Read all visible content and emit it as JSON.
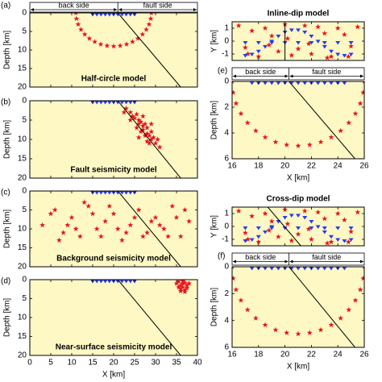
{
  "chart_data": [
    {
      "type": "scatter",
      "label": "(a)",
      "title": "Half-circle model",
      "ylabel": "Depth [km]",
      "annotations": [
        "back side",
        "fault side"
      ],
      "xlim": [
        0,
        40
      ],
      "xticks": [
        0,
        5,
        10,
        15,
        20,
        25,
        30,
        35,
        40
      ],
      "xtick_labels": false,
      "ylim": [
        20,
        0
      ],
      "yticks": [
        0,
        5,
        10,
        15,
        20
      ],
      "series": [
        {
          "marker": "star",
          "color": "#e8141c",
          "x": [
            29,
            28.86,
            28.46,
            27.79,
            26.89,
            25.79,
            24.5,
            23.08,
            21.56,
            20,
            18.44,
            16.92,
            15.5,
            14.21,
            13.11,
            12.21,
            11.54,
            11.14,
            11
          ],
          "y": [
            0,
            1.56,
            3.08,
            4.5,
            5.79,
            6.89,
            7.79,
            8.46,
            8.86,
            9,
            8.86,
            8.46,
            7.79,
            6.89,
            5.79,
            4.5,
            3.08,
            1.56,
            0
          ]
        },
        {
          "marker": "triangle",
          "color": "#2a3cf0",
          "x": [
            15,
            16,
            17,
            18,
            19,
            20,
            21,
            22,
            23,
            24,
            25
          ],
          "y": [
            0,
            0,
            0,
            0,
            0,
            0,
            0,
            0,
            0,
            0,
            0
          ]
        },
        {
          "marker": "line",
          "color": "#000000",
          "x": [
            21,
            36
          ],
          "y": [
            0,
            20
          ]
        }
      ]
    },
    {
      "type": "scatter",
      "label": "(b)",
      "title": "Fault seismicity model",
      "ylabel": "Depth [km]",
      "xlim": [
        0,
        40
      ],
      "xticks": [
        0,
        5,
        10,
        15,
        20,
        25,
        30,
        35,
        40
      ],
      "xtick_labels": false,
      "ylim": [
        20,
        0
      ],
      "yticks": [
        0,
        5,
        10,
        15,
        20
      ],
      "series": [
        {
          "marker": "star",
          "color": "#e8141c",
          "x": [
            23,
            24,
            24.5,
            25,
            25.5,
            26,
            26,
            26.5,
            27,
            27,
            27.5,
            28,
            28,
            28.5,
            29,
            29,
            29.5,
            30,
            24,
            25.5,
            26.5,
            27.5,
            28.5,
            30.5,
            31,
            22.5,
            27,
            29,
            26,
            28
          ],
          "y": [
            2,
            3,
            4,
            4.5,
            3.5,
            5,
            6,
            5.5,
            6.5,
            7.5,
            6,
            7,
            8.5,
            9,
            8,
            10,
            9.5,
            11,
            5,
            7,
            8,
            9,
            11,
            10,
            12,
            3,
            4,
            6,
            9.5,
            10.5
          ]
        },
        {
          "marker": "triangle",
          "color": "#2a3cf0",
          "x": [
            15,
            16,
            17,
            18,
            19,
            20,
            21,
            22,
            23,
            24,
            25
          ],
          "y": [
            0,
            0,
            0,
            0,
            0,
            0,
            0,
            0,
            0,
            0,
            0
          ]
        },
        {
          "marker": "line",
          "color": "#000000",
          "x": [
            21,
            36
          ],
          "y": [
            0,
            20
          ]
        }
      ]
    },
    {
      "type": "scatter",
      "label": "(c)",
      "title": "Background seismicity model",
      "ylabel": "Depth [km]",
      "xlim": [
        0,
        40
      ],
      "xticks": [
        0,
        5,
        10,
        15,
        20,
        25,
        30,
        35,
        40
      ],
      "xtick_labels": false,
      "ylim": [
        20,
        0
      ],
      "yticks": [
        0,
        5,
        10,
        15,
        20
      ],
      "series": [
        {
          "marker": "star",
          "color": "#e8141c",
          "x": [
            3,
            6,
            8,
            10,
            12,
            14,
            16,
            18,
            20,
            22,
            24,
            26,
            28,
            30,
            32,
            34,
            36,
            38,
            5,
            9,
            13,
            17,
            21,
            25,
            29,
            33,
            37,
            7,
            15,
            23,
            31,
            35,
            11,
            19,
            27
          ],
          "y": [
            9,
            5,
            11,
            7,
            12,
            4,
            10,
            8,
            6,
            13,
            9,
            5,
            11,
            7,
            10,
            4,
            12,
            8,
            6,
            9,
            3,
            12,
            10,
            7,
            8,
            12,
            5,
            13,
            6,
            11,
            9,
            7,
            10,
            4,
            12
          ]
        },
        {
          "marker": "triangle",
          "color": "#2a3cf0",
          "x": [
            15,
            16,
            17,
            18,
            19,
            20,
            21,
            22,
            23,
            24,
            25
          ],
          "y": [
            0,
            0,
            0,
            0,
            0,
            0,
            0,
            0,
            0,
            0,
            0
          ]
        },
        {
          "marker": "line",
          "color": "#000000",
          "x": [
            21,
            36
          ],
          "y": [
            0,
            20
          ]
        }
      ]
    },
    {
      "type": "scatter",
      "label": "(d)",
      "title": "Near-surface seismicity model",
      "ylabel": "Depth [km]",
      "xlabel": "X [km]",
      "xlim": [
        0,
        40
      ],
      "xticks": [
        0,
        5,
        10,
        15,
        20,
        25,
        30,
        35,
        40
      ],
      "xtick_labels": true,
      "ylim": [
        20,
        0
      ],
      "yticks": [
        0,
        5,
        10,
        15,
        20
      ],
      "series": [
        {
          "marker": "star",
          "color": "#e8141c",
          "x": [
            35,
            35.5,
            36,
            36.5,
            37,
            37.5,
            38,
            35.5,
            36,
            36.5,
            37,
            37.5,
            36,
            37,
            36.5
          ],
          "y": [
            1,
            0.5,
            1.5,
            1,
            0.8,
            1.5,
            1,
            2,
            2.5,
            2,
            2.8,
            2.2,
            3,
            3.2,
            0.3
          ]
        },
        {
          "marker": "triangle",
          "color": "#2a3cf0",
          "x": [
            15,
            16,
            17,
            18,
            19,
            20,
            21,
            22,
            23,
            24,
            25
          ],
          "y": [
            0,
            0,
            0,
            0,
            0,
            0,
            0,
            0,
            0,
            0,
            0
          ]
        },
        {
          "marker": "line",
          "color": "#000000",
          "x": [
            21,
            36
          ],
          "y": [
            0,
            20
          ]
        }
      ]
    },
    {
      "type": "scatter",
      "title": "Inline-dip model",
      "ylabel": "Y [km]",
      "xlim": [
        16,
        26
      ],
      "xticks": [
        16,
        18,
        20,
        22,
        24,
        26
      ],
      "xtick_labels": false,
      "ylim": [
        -1.5,
        1.5
      ],
      "yticks": [
        -1,
        0,
        1
      ],
      "series": [
        {
          "marker": "star",
          "color": "#e8141c",
          "x": [
            16.5,
            17,
            17.5,
            18,
            18.5,
            19,
            19.5,
            20,
            20.5,
            21,
            21.5,
            22,
            22.5,
            23,
            23.5,
            24,
            24.5,
            25,
            25.5,
            17.2,
            18.8,
            20.2,
            21.8,
            23.2,
            24.8
          ],
          "y": [
            1.2,
            -0.5,
            0.8,
            -1.2,
            1,
            0.4,
            -0.8,
            1.3,
            -1.1,
            -0.6,
            1.2,
            -1,
            1.1,
            0.6,
            -1.2,
            1,
            0.5,
            -0.4,
            1.1,
            -1,
            -0.3,
            0.2,
            -0.2,
            -1.3,
            -1.2
          ]
        },
        {
          "marker": "triangle",
          "color": "#2a3cf0",
          "x": [
            17,
            18,
            19,
            20,
            21,
            22,
            23,
            24,
            25,
            17,
            17.5,
            18,
            18.5,
            19,
            19.5,
            20,
            20.5,
            21,
            21.5,
            22,
            22.5,
            23,
            23.5,
            24,
            24.5,
            25
          ],
          "y": [
            0,
            0,
            0,
            0,
            0,
            0,
            0,
            0,
            0,
            -1,
            -0.91,
            -0.67,
            -0.31,
            0.1,
            0.5,
            0.81,
            0.98,
            0.98,
            0.81,
            0.5,
            0.1,
            -0.31,
            -0.67,
            -0.91,
            -1,
            -0.91
          ]
        },
        {
          "marker": "line",
          "color": "#000000",
          "x": [
            20,
            20
          ],
          "y": [
            -1.5,
            1.5
          ]
        }
      ]
    },
    {
      "type": "scatter",
      "label": "(e)",
      "ylabel": "Depth [km]",
      "xlabel": "X [km]",
      "annotations": [
        "back side",
        "fault side"
      ],
      "xlim": [
        16,
        26
      ],
      "xticks": [
        16,
        18,
        20,
        22,
        24,
        26
      ],
      "xtick_labels": true,
      "ylim": [
        6,
        0
      ],
      "yticks": [
        0,
        2,
        4,
        6
      ],
      "series": [
        {
          "marker": "star",
          "color": "#e8141c",
          "x": [
            26,
            25.92,
            25.7,
            25.33,
            24.83,
            24.21,
            23.5,
            22.71,
            21.87,
            21,
            20.13,
            19.29,
            18.5,
            17.79,
            17.17,
            16.67,
            16.3,
            16.08,
            16
          ],
          "y": [
            0,
            0.87,
            1.71,
            2.5,
            3.21,
            3.83,
            4.33,
            4.7,
            4.92,
            5,
            4.92,
            4.7,
            4.33,
            3.83,
            3.21,
            2.5,
            1.71,
            0.87,
            0
          ]
        },
        {
          "marker": "triangle",
          "color": "#2a3cf0",
          "x": [
            17.5,
            18,
            18.5,
            19,
            19.5,
            20,
            20.5,
            21,
            21.5,
            22,
            22.5,
            23,
            23.5,
            24,
            24.5
          ],
          "y": [
            0,
            0,
            0,
            0,
            0,
            0,
            0,
            0,
            0,
            0,
            0,
            0,
            0,
            0,
            0
          ]
        },
        {
          "marker": "line",
          "color": "#000000",
          "x": [
            20.3,
            25.3
          ],
          "y": [
            0,
            6
          ]
        }
      ]
    },
    {
      "type": "scatter",
      "title": "Cross-dip model",
      "ylabel": "Y [km]",
      "xlim": [
        16,
        26
      ],
      "xticks": [
        16,
        18,
        20,
        22,
        24,
        26
      ],
      "xtick_labels": false,
      "ylim": [
        -1.5,
        1.5
      ],
      "yticks": [
        -1,
        0,
        1
      ],
      "series": [
        {
          "marker": "star",
          "color": "#e8141c",
          "x": [
            16.5,
            17,
            17.5,
            18,
            18.5,
            19,
            19.5,
            20,
            20.5,
            21,
            21.5,
            22,
            22.5,
            23,
            23.5,
            24,
            24.5,
            25,
            25.5,
            17.2,
            18.8,
            20.2,
            21.8,
            23.2,
            24.8
          ],
          "y": [
            1.2,
            -0.5,
            0.8,
            -1.2,
            1,
            0.4,
            -0.8,
            1.3,
            -1.1,
            -0.6,
            1.2,
            -1,
            1.1,
            0.6,
            -1.2,
            1,
            0.5,
            -0.4,
            1.1,
            -1,
            -0.3,
            0.2,
            -0.2,
            -1.3,
            -1.2
          ]
        },
        {
          "marker": "triangle",
          "color": "#2a3cf0",
          "x": [
            17,
            18,
            19,
            20,
            21,
            22,
            23,
            24,
            25,
            17,
            17.5,
            18,
            18.5,
            19,
            19.5,
            20,
            20.5,
            21,
            21.5,
            22,
            22.5,
            23,
            23.5,
            24,
            24.5,
            25
          ],
          "y": [
            0,
            0,
            0,
            0,
            0,
            0,
            0,
            0,
            0,
            -1,
            -0.91,
            -0.67,
            -0.31,
            0.1,
            0.5,
            0.81,
            0.98,
            0.98,
            0.81,
            0.5,
            0.1,
            -0.31,
            -0.67,
            -0.91,
            -1,
            -0.91
          ]
        },
        {
          "marker": "line",
          "color": "#000000",
          "x": [
            18.7,
            21.2
          ],
          "y": [
            1.5,
            -1.5
          ]
        }
      ]
    },
    {
      "type": "scatter",
      "label": "(f)",
      "ylabel": "Depth [km]",
      "xlabel": "X [km]",
      "annotations": [
        "back side",
        "fault side"
      ],
      "xlim": [
        16,
        26
      ],
      "xticks": [
        16,
        18,
        20,
        22,
        24,
        26
      ],
      "xtick_labels": true,
      "ylim": [
        6,
        0
      ],
      "yticks": [
        0,
        2,
        4,
        6
      ],
      "series": [
        {
          "marker": "star",
          "color": "#e8141c",
          "x": [
            26,
            25.92,
            25.7,
            25.33,
            24.83,
            24.21,
            23.5,
            22.71,
            21.87,
            21,
            20.13,
            19.29,
            18.5,
            17.79,
            17.17,
            16.67,
            16.3,
            16.08,
            16
          ],
          "y": [
            0,
            0.87,
            1.71,
            2.5,
            3.21,
            3.83,
            4.33,
            4.7,
            4.92,
            5,
            4.92,
            4.7,
            4.33,
            3.83,
            3.21,
            2.5,
            1.71,
            0.87,
            0
          ]
        },
        {
          "marker": "triangle",
          "color": "#2a3cf0",
          "x": [
            17.5,
            18,
            18.5,
            19,
            19.5,
            20,
            20.5,
            21,
            21.5,
            22,
            22.5,
            23,
            23.5,
            24,
            24.5
          ],
          "y": [
            0,
            0,
            0,
            0,
            0,
            0,
            0,
            0,
            0,
            0,
            0,
            0,
            0,
            0,
            0
          ]
        },
        {
          "marker": "line",
          "color": "#000000",
          "x": [
            20.3,
            25.3
          ],
          "y": [
            0,
            6
          ]
        }
      ]
    }
  ]
}
